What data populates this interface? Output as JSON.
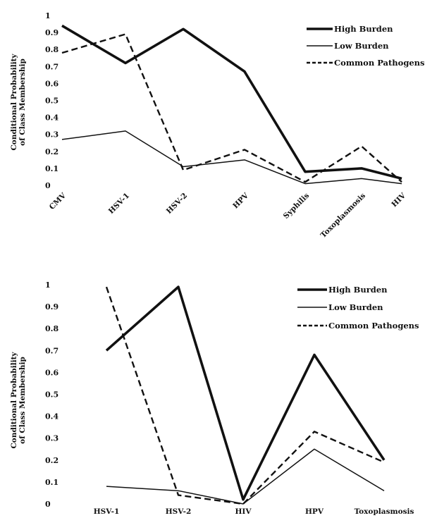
{
  "chart_data": [
    {
      "type": "line",
      "ylabel": [
        "Conditional Probability",
        "of Class Membership"
      ],
      "categories": [
        "CMV",
        "HSV-1",
        "HSV-2",
        "HPV",
        "Syphilis",
        "Toxoplasmosis",
        "HIV"
      ],
      "yticks": [
        "0",
        "0.1",
        "0.2",
        "0.3",
        "0.4",
        "0.5",
        "0.6",
        "0.7",
        "0.8",
        "0.9",
        "1"
      ],
      "ylim": [
        0,
        1
      ],
      "grid": false,
      "legend_position": "top-right",
      "series": [
        {
          "name": "High Burden",
          "style": "thick",
          "values": [
            0.94,
            0.72,
            0.92,
            0.67,
            0.08,
            0.1,
            0.04
          ]
        },
        {
          "name": "Low Burden",
          "style": "thin",
          "values": [
            0.27,
            0.32,
            0.11,
            0.15,
            0.01,
            0.04,
            0.01
          ]
        },
        {
          "name": "Common Pathogens",
          "style": "dashed",
          "values": [
            0.78,
            0.89,
            0.09,
            0.21,
            0.02,
            0.23,
            0.02
          ]
        }
      ]
    },
    {
      "type": "line",
      "ylabel": [
        "Conditional Probability",
        "of Class Membership"
      ],
      "categories": [
        "HSV-1",
        "HSV-2",
        "HIV",
        "HPV",
        "Toxoplasmosis"
      ],
      "yticks": [
        "0",
        "0.1",
        "0.2",
        "0.3",
        "0.4",
        "0.5",
        "0.6",
        "0.7",
        "0.8",
        "0.9",
        "1"
      ],
      "ylim": [
        0,
        1
      ],
      "grid": false,
      "legend_position": "top-right",
      "series": [
        {
          "name": "High Burden",
          "style": "thick",
          "values": [
            0.7,
            0.99,
            0.02,
            0.68,
            0.2
          ]
        },
        {
          "name": "Low Burden",
          "style": "thin",
          "values": [
            0.08,
            0.06,
            0.0,
            0.25,
            0.06
          ]
        },
        {
          "name": "Common Pathogens",
          "style": "dashed",
          "values": [
            0.99,
            0.04,
            0.0,
            0.33,
            0.19
          ]
        }
      ]
    }
  ],
  "colors": {
    "ink": "#111111"
  }
}
